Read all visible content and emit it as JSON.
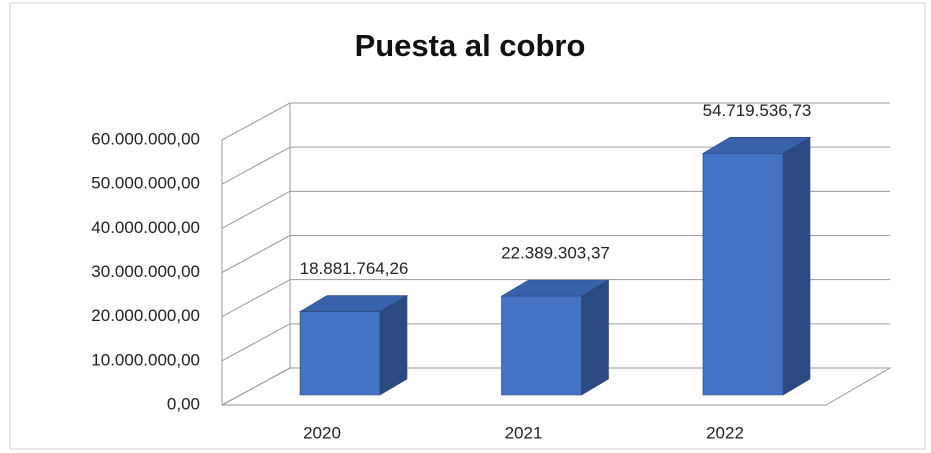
{
  "chart_data": {
    "type": "bar3d",
    "title": "Puesta al cobro",
    "categories": [
      "2020",
      "2021",
      "2022"
    ],
    "values": [
      18881764.26,
      22389303.37,
      54719536.73
    ],
    "value_labels": [
      "18.881.764,26",
      "22.389.303,37",
      "54.719.536,73"
    ],
    "color": "#4472c4",
    "ylim": [
      0,
      60000000
    ],
    "yticks": [
      {
        "value": 0,
        "label": "0,00"
      },
      {
        "value": 10000000,
        "label": "10.000.000,00"
      },
      {
        "value": 20000000,
        "label": "20.000.000,00"
      },
      {
        "value": 30000000,
        "label": "30.000.000,00"
      },
      {
        "value": 40000000,
        "label": "40.000.000,00"
      },
      {
        "value": 50000000,
        "label": "50.000.000,00"
      },
      {
        "value": 60000000,
        "label": "60.000.000,00"
      }
    ],
    "grid": true
  }
}
